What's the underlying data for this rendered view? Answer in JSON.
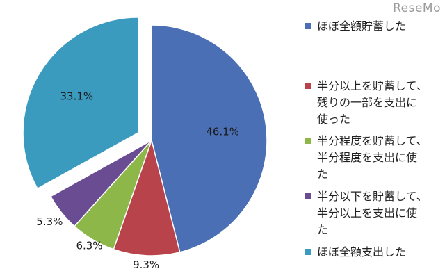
{
  "watermark": "ReseMo",
  "chart_data": {
    "type": "pie",
    "title": "",
    "slices": [
      {
        "label": "ほぼ全額貯蓄した",
        "value": 46.1,
        "display": "46.1%",
        "color": "#4a6fb5",
        "exploded": false
      },
      {
        "label": "半分以上を貯蓄して、残りの一部を支出に使った",
        "value": 9.3,
        "display": "9.3%",
        "color": "#b8434a",
        "exploded": false
      },
      {
        "label": "半分程度を貯蓄して、半分程度を支出に使った",
        "value": 6.3,
        "display": "6.3%",
        "color": "#8db849",
        "exploded": false
      },
      {
        "label": "半分以下を貯蓄して、半分以上を支出に使った",
        "value": 5.3,
        "display": "5.3%",
        "color": "#6a4c93",
        "exploded": false
      },
      {
        "label": "ほぼ全額支出した",
        "value": 33.1,
        "display": "33.1%",
        "color": "#3a9bbf",
        "exploded": true
      }
    ],
    "legend_placement": "right"
  },
  "legend": {
    "items": [
      {
        "name": "legend-item-full-savings",
        "text": "ほぼ全額貯蓄した",
        "color": "#4a6fb5"
      },
      {
        "name": "legend-item-more-than-half-savings",
        "text": "半分以上を貯蓄して、\n残りの一部を支出に\n使った",
        "color": "#b8434a"
      },
      {
        "name": "legend-item-half-savings",
        "text": "半分程度を貯蓄して、\n半分程度を支出に使\nた",
        "color": "#8db849"
      },
      {
        "name": "legend-item-less-than-half-savings",
        "text": "半分以下を貯蓄して、\n半分以上を支出に使\nた",
        "color": "#6a4c93"
      },
      {
        "name": "legend-item-full-spending",
        "text": "ほぼ全額支出した",
        "color": "#3a9bbf"
      }
    ]
  }
}
